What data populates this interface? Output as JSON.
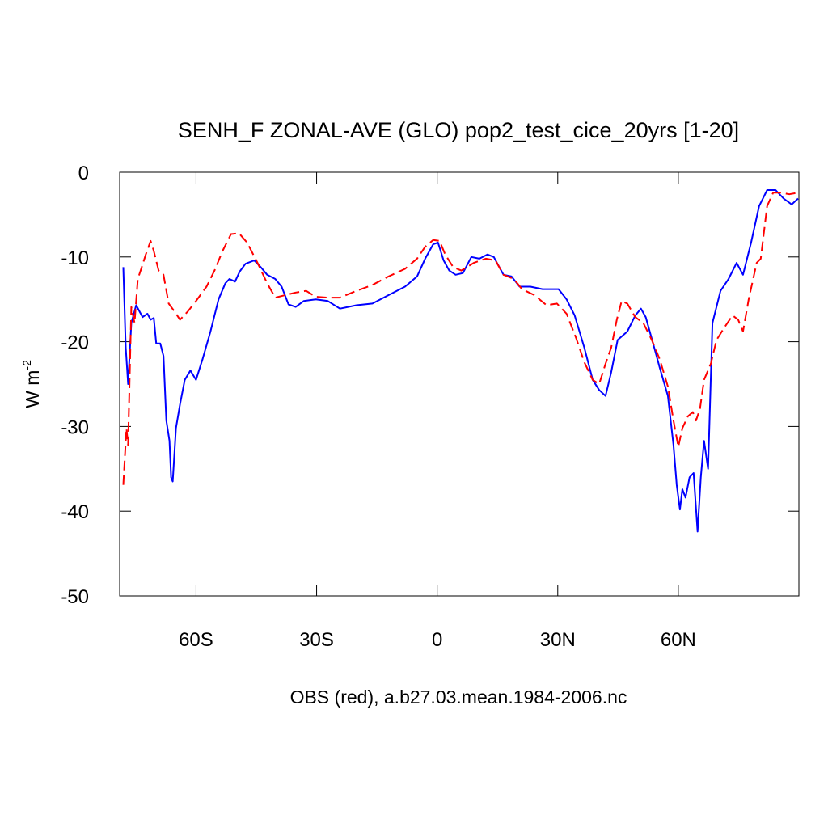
{
  "chart_data": {
    "type": "line",
    "title": "SENH_F ZONAL-AVE (GLO) pop2_test_cice_20yrs [1-20]",
    "x_label": "OBS (red), a.b27.03.mean.1984-2006.nc",
    "y_label": "W m",
    "y_label_superscript": "-2",
    "xlim": [
      -79,
      90
    ],
    "ylim": [
      -50,
      0
    ],
    "xticks": [
      {
        "value": -60,
        "label": "60S"
      },
      {
        "value": -30,
        "label": "30S"
      },
      0,
      {
        "value": 30,
        "label": "30N"
      },
      {
        "value": 60,
        "label": "60N"
      }
    ],
    "yticks": [
      0,
      -10,
      -20,
      -30,
      -40,
      -50
    ],
    "series": [
      {
        "color": "#0000ff",
        "dash": "solid",
        "x": [
          -78.1,
          -77.5,
          -76.9,
          -76.1,
          -74.9,
          -73.3,
          -72.1,
          -71.3,
          -70.5,
          -69.9,
          -68.9,
          -68.1,
          -67.4,
          -66.6,
          -66.2,
          -65.8,
          -65,
          -64,
          -62.8,
          -61.4,
          -60,
          -58.4,
          -56.4,
          -54.4,
          -52.7,
          -51.7,
          -50.3,
          -49.1,
          -47.7,
          -45.5,
          -43.9,
          -42.3,
          -40.3,
          -38.7,
          -37,
          -35.2,
          -33.2,
          -30.2,
          -27.2,
          -24.2,
          -20.1,
          -16.1,
          -12.1,
          -8,
          -5,
          -3,
          -1,
          0.2,
          1.6,
          3,
          4.6,
          6.4,
          8.5,
          10.5,
          12.5,
          14.1,
          16.5,
          18.5,
          20.5,
          23.2,
          26.2,
          30.2,
          32.2,
          34.2,
          36.6,
          38.7,
          40.3,
          41.9,
          43.3,
          44.9,
          47.3,
          49.3,
          50.7,
          51.9,
          54,
          55.4,
          57.4,
          58.8,
          59.6,
          60.4,
          61,
          61.8,
          62.8,
          63.8,
          64.8,
          65.6,
          66.4,
          67.4,
          68.5,
          70.5,
          72.5,
          74.5,
          76.1,
          78.1,
          80.1,
          82.1,
          84.2,
          86.2,
          88.2,
          89.8
        ],
        "values": [
          -11.2,
          -20.7,
          -25,
          -17.8,
          -15.7,
          -17.1,
          -16.7,
          -17.4,
          -17.2,
          -20.2,
          -20.2,
          -21.7,
          -29.3,
          -31.7,
          -36,
          -36.5,
          -30.2,
          -27.4,
          -24.5,
          -23.4,
          -24.5,
          -22.1,
          -18.8,
          -15,
          -13.1,
          -12.6,
          -12.9,
          -11.7,
          -10.8,
          -10.4,
          -11.2,
          -12.1,
          -12.6,
          -13.5,
          -15.6,
          -15.9,
          -15.2,
          -15,
          -15.2,
          -16.1,
          -15.7,
          -15.5,
          -14.5,
          -13.5,
          -12.3,
          -10.2,
          -8.5,
          -8.3,
          -10.4,
          -11.6,
          -12.1,
          -11.9,
          -10,
          -10.2,
          -9.7,
          -10,
          -12.1,
          -12.3,
          -13.5,
          -13.5,
          -13.8,
          -13.8,
          -15,
          -16.9,
          -20.7,
          -24.5,
          -25.7,
          -26.4,
          -23.6,
          -19.8,
          -18.8,
          -16.9,
          -16.1,
          -17.1,
          -20.7,
          -23.1,
          -26.4,
          -32.2,
          -36.9,
          -39.8,
          -37.4,
          -38.4,
          -36,
          -35.5,
          -42.4,
          -36,
          -31.7,
          -35,
          -17.8,
          -14,
          -12.6,
          -10.7,
          -12.1,
          -8.3,
          -4,
          -2.1,
          -2.1,
          -3.1,
          -3.8,
          -3.1
        ]
      },
      {
        "color": "#ff0000",
        "dash": "dashed",
        "x": [
          -78.1,
          -77.3,
          -76.9,
          -76.1,
          -75.3,
          -74.5,
          -73.5,
          -72.5,
          -71.3,
          -70.5,
          -69.3,
          -68.1,
          -66.8,
          -65.4,
          -64,
          -62,
          -60,
          -57.4,
          -55.4,
          -53.4,
          -51.3,
          -49.3,
          -47.3,
          -44.7,
          -42.3,
          -40.3,
          -37.8,
          -35.2,
          -32.6,
          -30.2,
          -27.2,
          -24.2,
          -20.1,
          -16.1,
          -12.1,
          -8,
          -5,
          -3,
          -1,
          0.6,
          2,
          4,
          6,
          9.1,
          12.1,
          14.5,
          16.5,
          19.1,
          21.1,
          24.2,
          27.2,
          29.8,
          32.2,
          34.6,
          36.6,
          38.7,
          40.3,
          41.9,
          43.3,
          44.7,
          45.9,
          47.3,
          49.3,
          51.3,
          53.4,
          55.4,
          57.4,
          58.8,
          60,
          61,
          62.4,
          63.6,
          64.4,
          65.4,
          66.4,
          68.1,
          69.5,
          71.5,
          73.5,
          74.9,
          76.1,
          77.5,
          79.5,
          80.5,
          82.1,
          83.6,
          85.6,
          87.6,
          89.8
        ],
        "values": [
          -36.9,
          -30.2,
          -32.2,
          -15.9,
          -17.8,
          -12.6,
          -11.2,
          -9.7,
          -8.1,
          -9.3,
          -11.6,
          -12.1,
          -15.5,
          -16.4,
          -17.4,
          -16.4,
          -15.2,
          -13.5,
          -11.6,
          -9.3,
          -7.3,
          -7.2,
          -8.3,
          -10.7,
          -13.1,
          -14.8,
          -14.5,
          -14.2,
          -14,
          -14.7,
          -14.8,
          -14.8,
          -14,
          -13.3,
          -12.3,
          -11.4,
          -10.2,
          -8.8,
          -8,
          -8.1,
          -9.7,
          -11.2,
          -11.6,
          -10.7,
          -10.2,
          -10.4,
          -12.1,
          -12.6,
          -13.8,
          -14.5,
          -15.7,
          -15.5,
          -16.7,
          -19.6,
          -22.4,
          -24.5,
          -25,
          -22.6,
          -20.7,
          -17.4,
          -15.2,
          -15.5,
          -17.1,
          -17.8,
          -19.8,
          -22.1,
          -25.3,
          -29.3,
          -32.4,
          -30.2,
          -28.8,
          -28.3,
          -29.3,
          -27.9,
          -24.5,
          -22.6,
          -19.8,
          -18.3,
          -16.9,
          -17.4,
          -18.8,
          -15,
          -10.7,
          -10.2,
          -4,
          -2.4,
          -2.4,
          -2.6,
          -2.4
        ]
      }
    ]
  }
}
